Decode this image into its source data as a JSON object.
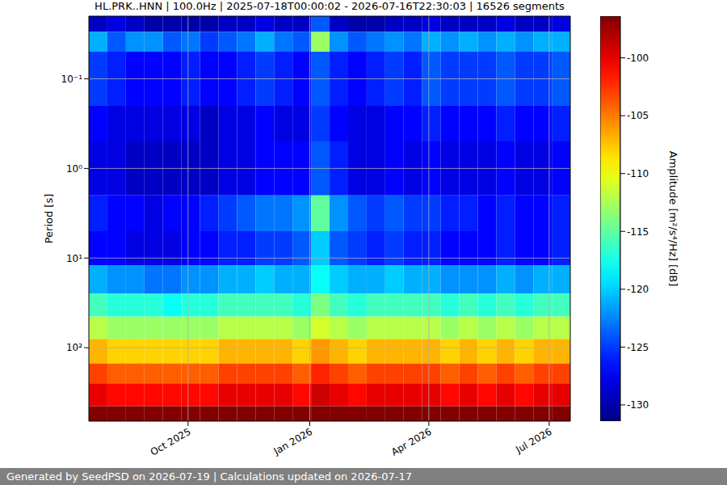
{
  "chart_data": {
    "type": "heatmap",
    "title": "HL.PRK..HNN | 100.0Hz | 2025-07-18T00:00:02 - 2026-07-16T22:30:03 | 16526 segments",
    "footer": "Generated by SeedPSD on 2026-07-19 | Calculations updated on 2026-07-17",
    "ylabel": "Period [s]",
    "log": "y",
    "grid": true,
    "xlim": [
      "2025-07-18T00:00:02",
      "2026-07-16T22:30:03"
    ],
    "xticks": [
      {
        "value": "2025-10-01",
        "label": "Oct 2025"
      },
      {
        "value": "2026-01-01",
        "label": "Jan 2026"
      },
      {
        "value": "2026-04-01",
        "label": "Apr 2026"
      },
      {
        "value": "2026-07-01",
        "label": "Jul 2026"
      }
    ],
    "ylim": [
      0.02,
      660
    ],
    "yticks": [
      {
        "value": 0.1,
        "label": "10⁻¹"
      },
      {
        "value": 1,
        "label": "10⁰"
      },
      {
        "value": 10,
        "label": "10¹"
      },
      {
        "value": 100,
        "label": "10²"
      }
    ],
    "x": [
      "2025-07-18",
      "2025-08-01",
      "2025-08-15",
      "2025-08-29",
      "2025-09-12",
      "2025-09-26",
      "2025-10-10",
      "2025-10-24",
      "2025-11-07",
      "2025-11-21",
      "2025-12-05",
      "2025-12-19",
      "2026-01-02",
      "2026-01-16",
      "2026-01-30",
      "2026-02-13",
      "2026-02-27",
      "2026-03-13",
      "2026-03-27",
      "2026-04-10",
      "2026-04-24",
      "2026-05-08",
      "2026-05-22",
      "2026-06-05",
      "2026-06-19",
      "2026-07-03"
    ],
    "y": [
      0.02,
      0.03,
      0.05,
      0.2,
      0.5,
      2,
      5,
      12,
      25,
      45,
      80,
      150,
      250,
      450
    ],
    "cells": [
      [
        -129,
        -128,
        -129,
        -130,
        -130,
        -130,
        -130,
        -129,
        -129,
        -128,
        -129,
        -129,
        -124,
        -129,
        -130,
        -130,
        -129,
        -129,
        -128,
        -129,
        -129,
        -129,
        -128,
        -129,
        -129,
        -128
      ],
      [
        -121,
        -124,
        -122,
        -122,
        -124,
        -123,
        -125,
        -124,
        -123,
        -121,
        -123,
        -124,
        -113,
        -122,
        -124,
        -123,
        -122,
        -123,
        -121,
        -122,
        -121,
        -122,
        -121,
        -122,
        -121,
        -121
      ],
      [
        -125,
        -126,
        -127,
        -127,
        -127,
        -126,
        -127,
        -127,
        -126,
        -125,
        -126,
        -127,
        -124,
        -126,
        -127,
        -126,
        -125,
        -126,
        -124,
        -125,
        -125,
        -125,
        -124,
        -125,
        -125,
        -124
      ],
      [
        -127,
        -128,
        -128,
        -128,
        -128,
        -128,
        -129,
        -128,
        -128,
        -127,
        -128,
        -128,
        -125,
        -127,
        -128,
        -128,
        -127,
        -127,
        -126,
        -127,
        -127,
        -127,
        -126,
        -127,
        -127,
        -126
      ],
      [
        -128,
        -128,
        -129,
        -129,
        -129,
        -129,
        -129,
        -128,
        -128,
        -127,
        -127,
        -127,
        -124,
        -126,
        -128,
        -128,
        -127,
        -128,
        -127,
        -128,
        -128,
        -128,
        -127,
        -128,
        -128,
        -127
      ],
      [
        -126,
        -127,
        -127,
        -128,
        -127,
        -127,
        -126,
        -125,
        -124,
        -123,
        -123,
        -122,
        -115,
        -122,
        -124,
        -125,
        -124,
        -125,
        -125,
        -126,
        -126,
        -127,
        -126,
        -127,
        -127,
        -126
      ],
      [
        -127,
        -127,
        -128,
        -128,
        -128,
        -127,
        -127,
        -126,
        -126,
        -125,
        -125,
        -124,
        -120,
        -124,
        -125,
        -126,
        -125,
        -126,
        -126,
        -127,
        -127,
        -127,
        -126,
        -127,
        -127,
        -126
      ],
      [
        -121,
        -122,
        -122,
        -123,
        -123,
        -122,
        -122,
        -121,
        -121,
        -120,
        -121,
        -121,
        -118,
        -120,
        -121,
        -121,
        -120,
        -121,
        -121,
        -122,
        -122,
        -122,
        -121,
        -122,
        -121,
        -121
      ],
      [
        -116,
        -117,
        -117,
        -117,
        -118,
        -117,
        -117,
        -116,
        -116,
        -116,
        -116,
        -117,
        -114,
        -116,
        -117,
        -116,
        -116,
        -116,
        -116,
        -117,
        -116,
        -117,
        -116,
        -117,
        -116,
        -116
      ],
      [
        -112,
        -113,
        -113,
        -113,
        -113,
        -113,
        -113,
        -112,
        -112,
        -112,
        -112,
        -113,
        -111,
        -112,
        -113,
        -112,
        -112,
        -112,
        -112,
        -113,
        -112,
        -113,
        -112,
        -113,
        -112,
        -112
      ],
      [
        -107,
        -108,
        -108,
        -108,
        -108,
        -108,
        -108,
        -107,
        -107,
        -107,
        -107,
        -108,
        -106,
        -107,
        -108,
        -107,
        -107,
        -107,
        -107,
        -108,
        -107,
        -108,
        -107,
        -108,
        -107,
        -107
      ],
      [
        -103,
        -104,
        -104,
        -104,
        -104,
        -104,
        -104,
        -103,
        -103,
        -103,
        -103,
        -104,
        -102,
        -103,
        -104,
        -103,
        -103,
        -103,
        -103,
        -104,
        -103,
        -104,
        -103,
        -104,
        -103,
        -103
      ],
      [
        -100,
        -101,
        -101,
        -101,
        -101,
        -101,
        -101,
        -100,
        -100,
        -100,
        -100,
        -101,
        -99,
        -100,
        -101,
        -100,
        -100,
        -100,
        -100,
        -101,
        -100,
        -101,
        -100,
        -101,
        -100,
        -100
      ],
      [
        -96.5,
        -96.5,
        -96.5,
        -96.5,
        -96.5,
        -96.5,
        -96.5,
        -96.5,
        -96.5,
        -96.5,
        -96.5,
        -96.5,
        -96.5,
        -96.5,
        -96.5,
        -96.5,
        -96.5,
        -96.5,
        -96.5,
        -96.5,
        -96.5,
        -96.5,
        -96.5,
        -96.5,
        -96.5,
        -96.5
      ]
    ],
    "colorbar": {
      "range": [
        -131.4,
        -96.4
      ],
      "ticks": [
        -130,
        -125,
        -120,
        -115,
        -110,
        -105,
        -100
      ],
      "label": "Amplitude [m²/s⁴/Hz] [dB]"
    }
  }
}
